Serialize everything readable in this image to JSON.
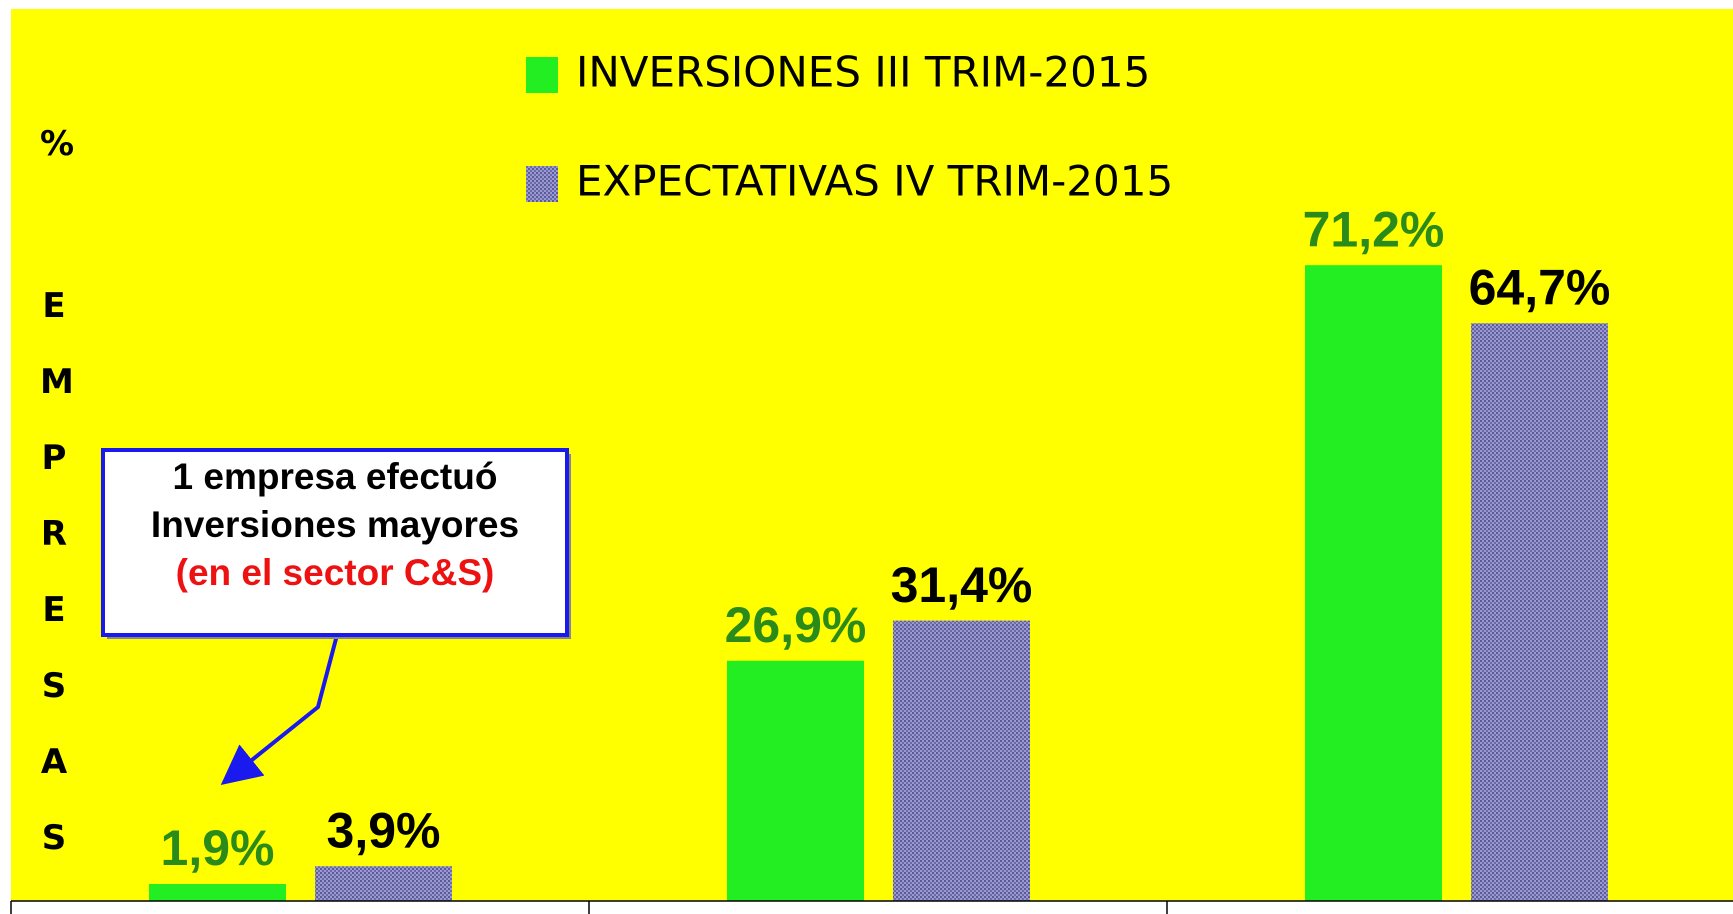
{
  "chart_data": {
    "type": "bar",
    "y_unit": "%",
    "y_label": "EMPRESAS",
    "categories": [
      null,
      null,
      null
    ],
    "series": [
      {
        "name": "INVERSIONES III TRIM-2015",
        "color": "#22ee22",
        "label_color": "#2a8a1a",
        "values": [
          1.9,
          26.9,
          71.2
        ],
        "value_labels": [
          "1,9%",
          "26,9%",
          "71,2%"
        ]
      },
      {
        "name": "EXPECTATIVAS IV TRIM-2015",
        "color": "#7a7ab8",
        "label_color": "#000000",
        "values": [
          3.9,
          31.4,
          64.7
        ],
        "value_labels": [
          "3,9%",
          "31,4%",
          "64,7%"
        ]
      }
    ],
    "ylim": [
      0,
      100
    ],
    "annotation": {
      "lines": [
        "1 empresa efectuó",
        "Inversiones mayores",
        "(en el sector C&S)"
      ],
      "colors": [
        "#000000",
        "#000000",
        "#ee1111"
      ]
    }
  }
}
